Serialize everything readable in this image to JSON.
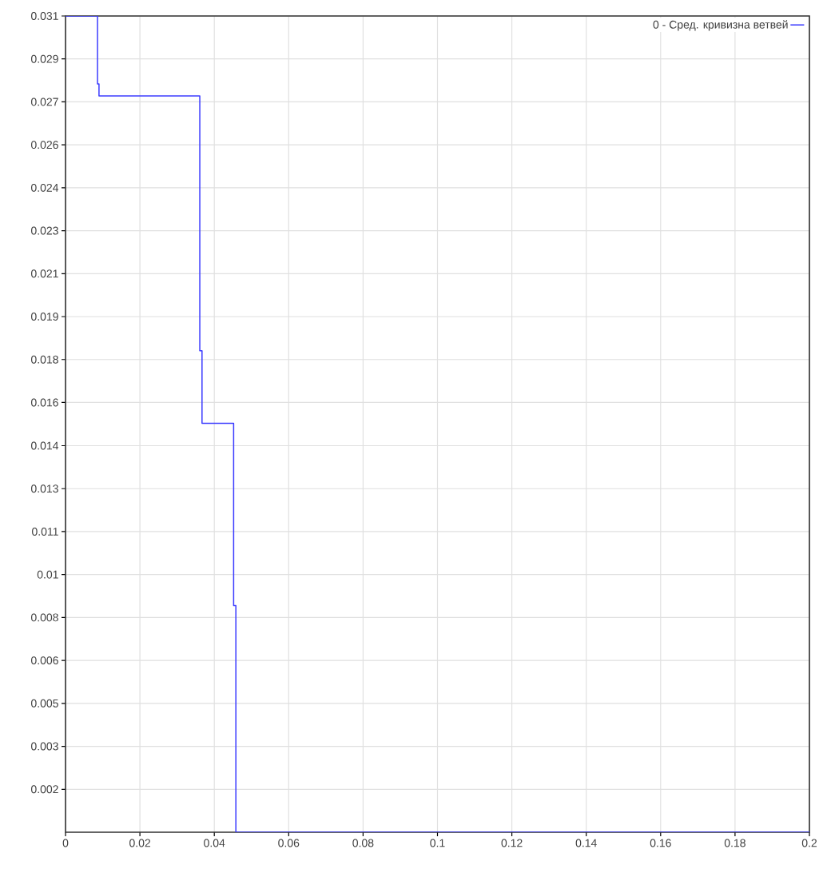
{
  "chart_data": {
    "type": "line",
    "x": [
      0,
      0.0086,
      0.0086,
      0.009,
      0.009,
      0.0361,
      0.0361,
      0.0367,
      0.0367,
      0.0452,
      0.0452,
      0.0458,
      0.0458,
      0.2
    ],
    "series": [
      {
        "name": "0 - Сред. кривизна ветвей",
        "color": "#3c3cff",
        "values": [
          0.0306,
          0.0306,
          0.02805,
          0.02805,
          0.0276,
          0.0276,
          0.01805,
          0.01805,
          0.01533,
          0.01533,
          0.0085,
          0.0085,
          0,
          0
        ]
      }
    ],
    "xlim": [
      0,
      0.2
    ],
    "ylim": [
      0,
      0.0306
    ],
    "xticks": [
      0,
      0.02,
      0.04,
      0.06,
      0.08,
      0.1,
      0.12,
      0.14,
      0.16,
      0.18,
      0.2
    ],
    "yticks": [
      {
        "value": 0.0306,
        "label": "0.031"
      },
      {
        "value": 0.02899,
        "label": "0.029"
      },
      {
        "value": 0.02738,
        "label": "0.027"
      },
      {
        "value": 0.02577,
        "label": "0.026"
      },
      {
        "value": 0.02416,
        "label": "0.024"
      },
      {
        "value": 0.02255,
        "label": "0.023"
      },
      {
        "value": 0.02094,
        "label": "0.021"
      },
      {
        "value": 0.01933,
        "label": "0.019"
      },
      {
        "value": 0.01772,
        "label": "0.018"
      },
      {
        "value": 0.01611,
        "label": "0.016"
      },
      {
        "value": 0.01449,
        "label": "0.014"
      },
      {
        "value": 0.01288,
        "label": "0.013"
      },
      {
        "value": 0.01127,
        "label": "0.011"
      },
      {
        "value": 0.00966,
        "label": "0.01"
      },
      {
        "value": 0.00805,
        "label": "0.008"
      },
      {
        "value": 0.00644,
        "label": "0.006"
      },
      {
        "value": 0.00483,
        "label": "0.005"
      },
      {
        "value": 0.00322,
        "label": "0.003"
      },
      {
        "value": 0.00161,
        "label": "0.002"
      }
    ],
    "grid": true,
    "legend": "top right",
    "marker": "none",
    "line_style": "solid"
  }
}
